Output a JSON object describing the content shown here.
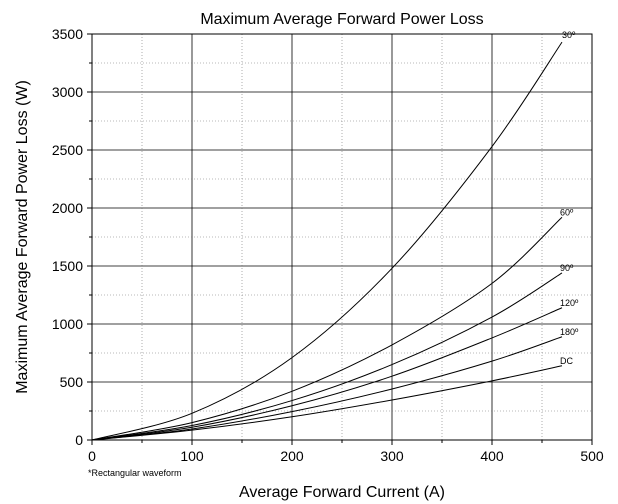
{
  "chart_data": {
    "type": "line",
    "title": "Maximum Average Forward Power Loss",
    "xlabel": "Average Forward Current (A)",
    "ylabel": "Maximum Average Forward Power Loss (W)",
    "xlim": [
      0,
      500
    ],
    "ylim": [
      0,
      3500
    ],
    "x_ticks": [
      "0",
      "100",
      "200",
      "300",
      "400",
      "500"
    ],
    "y_ticks": [
      "0",
      "500",
      "1000",
      "1500",
      "2000",
      "2500",
      "3000",
      "3500"
    ],
    "grid": true,
    "note": "*Rectangular waveform",
    "series": [
      {
        "name": "30º",
        "x": [
          0,
          100,
          200,
          300,
          400,
          470
        ],
        "y": [
          0,
          230,
          710,
          1480,
          2530,
          3430
        ]
      },
      {
        "name": "60º",
        "x": [
          0,
          100,
          200,
          300,
          400,
          470
        ],
        "y": [
          0,
          150,
          420,
          820,
          1350,
          1920
        ]
      },
      {
        "name": "90º",
        "x": [
          0,
          100,
          200,
          300,
          400,
          470
        ],
        "y": [
          0,
          125,
          340,
          650,
          1060,
          1440
        ]
      },
      {
        "name": "120º",
        "x": [
          0,
          100,
          200,
          300,
          400,
          470
        ],
        "y": [
          0,
          110,
          295,
          550,
          880,
          1140
        ]
      },
      {
        "name": "180º",
        "x": [
          0,
          100,
          200,
          300,
          400,
          470
        ],
        "y": [
          0,
          95,
          245,
          440,
          680,
          890
        ]
      },
      {
        "name": "DC",
        "x": [
          0,
          100,
          200,
          300,
          400,
          470
        ],
        "y": [
          0,
          85,
          200,
          345,
          510,
          640
        ]
      }
    ]
  }
}
